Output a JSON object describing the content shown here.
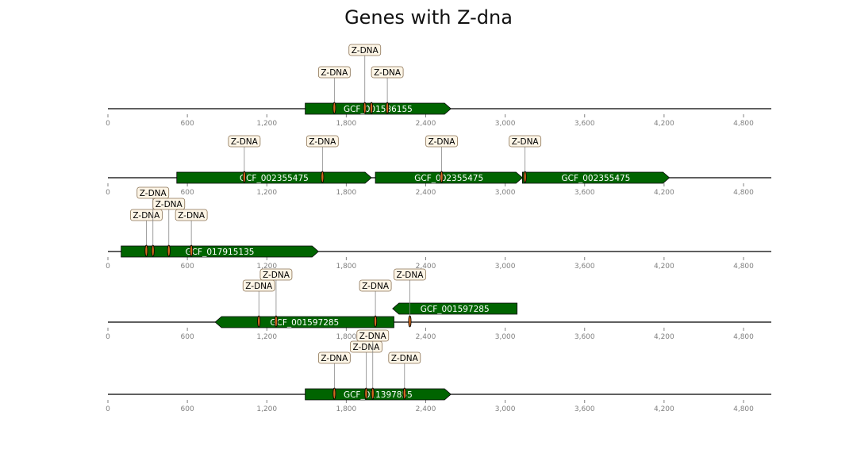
{
  "title": "Genes with Z-dna",
  "colors": {
    "gene": "#006400",
    "gene_text": "#ffffff",
    "label_bg": "#fdf5e6",
    "label_border": "#8b7355",
    "marker": "#d2691e",
    "axis": "#000000",
    "tick_label": "#808080"
  },
  "axis": {
    "min": 0,
    "max": 5000,
    "ticks": [
      0,
      600,
      1200,
      1800,
      2400,
      3000,
      3600,
      4200,
      4800
    ],
    "tick_labels": [
      "0",
      "600",
      "1,200",
      "1,800",
      "2,400",
      "3,000",
      "3,600",
      "4,200",
      "4,800"
    ]
  },
  "tracks": [
    {
      "genes": [
        {
          "name": "GCF_001586155",
          "start": 1490,
          "end": 2590,
          "strand": "+",
          "level": 0
        }
      ],
      "features": [
        {
          "label": "Z-DNA",
          "pos": 1710,
          "level": 1
        },
        {
          "label": "Z-DNA",
          "pos": 1940,
          "level": 3
        },
        {
          "label": "Z-DNA",
          "pos": 1990,
          "level": 0
        },
        {
          "label": "Z-DNA",
          "pos": 2110,
          "level": 1
        }
      ]
    },
    {
      "genes": [
        {
          "name": "GCF_002355475",
          "start": 520,
          "end": 1990,
          "strand": "+",
          "level": 0
        },
        {
          "name": "GCF_002355475",
          "start": 2020,
          "end": 3130,
          "strand": "+",
          "level": 0
        },
        {
          "name": "GCF_002355475",
          "start": 3130,
          "end": 4240,
          "strand": "+",
          "level": 0
        }
      ],
      "features": [
        {
          "label": "Z-DNA",
          "pos": 1030,
          "level": 1
        },
        {
          "label": "Z-DNA",
          "pos": 1620,
          "level": 1
        },
        {
          "label": "Z-DNA",
          "pos": 2520,
          "level": 1
        },
        {
          "label": "Z-DNA",
          "pos": 3150,
          "level": 1
        }
      ]
    },
    {
      "genes": [
        {
          "name": "GCF_017915135",
          "start": 100,
          "end": 1590,
          "strand": "+",
          "level": 0
        }
      ],
      "features": [
        {
          "label": "Z-DNA",
          "pos": 290,
          "level": 1
        },
        {
          "label": "Z-DNA",
          "pos": 340,
          "level": 3
        },
        {
          "label": "Z-DNA",
          "pos": 460,
          "level": 2
        },
        {
          "label": "Z-DNA",
          "pos": 630,
          "level": 1
        }
      ]
    },
    {
      "genes": [
        {
          "name": "GCF_001597285",
          "start": 810,
          "end": 2160,
          "strand": "-",
          "level": 0
        },
        {
          "name": "GCF_001597285",
          "start": 2150,
          "end": 3090,
          "strand": "-",
          "level": 1
        }
      ],
      "features": [
        {
          "label": "Z-DNA",
          "pos": 1140,
          "level": 1
        },
        {
          "label": "Z-DNA",
          "pos": 1270,
          "level": 2
        },
        {
          "label": "Z-DNA",
          "pos": 2020,
          "level": 1
        },
        {
          "label": "Z-DNA",
          "pos": 2280,
          "level": 2
        }
      ]
    },
    {
      "genes": [
        {
          "name": "GCF_011397855",
          "start": 1490,
          "end": 2590,
          "strand": "+",
          "level": 0
        }
      ],
      "features": [
        {
          "label": "Z-DNA",
          "pos": 1710,
          "level": 1
        },
        {
          "label": "Z-DNA",
          "pos": 1950,
          "level": 2
        },
        {
          "label": "Z-DNA",
          "pos": 2000,
          "level": 3
        },
        {
          "label": "Z-DNA",
          "pos": 2240,
          "level": 1
        }
      ]
    }
  ]
}
